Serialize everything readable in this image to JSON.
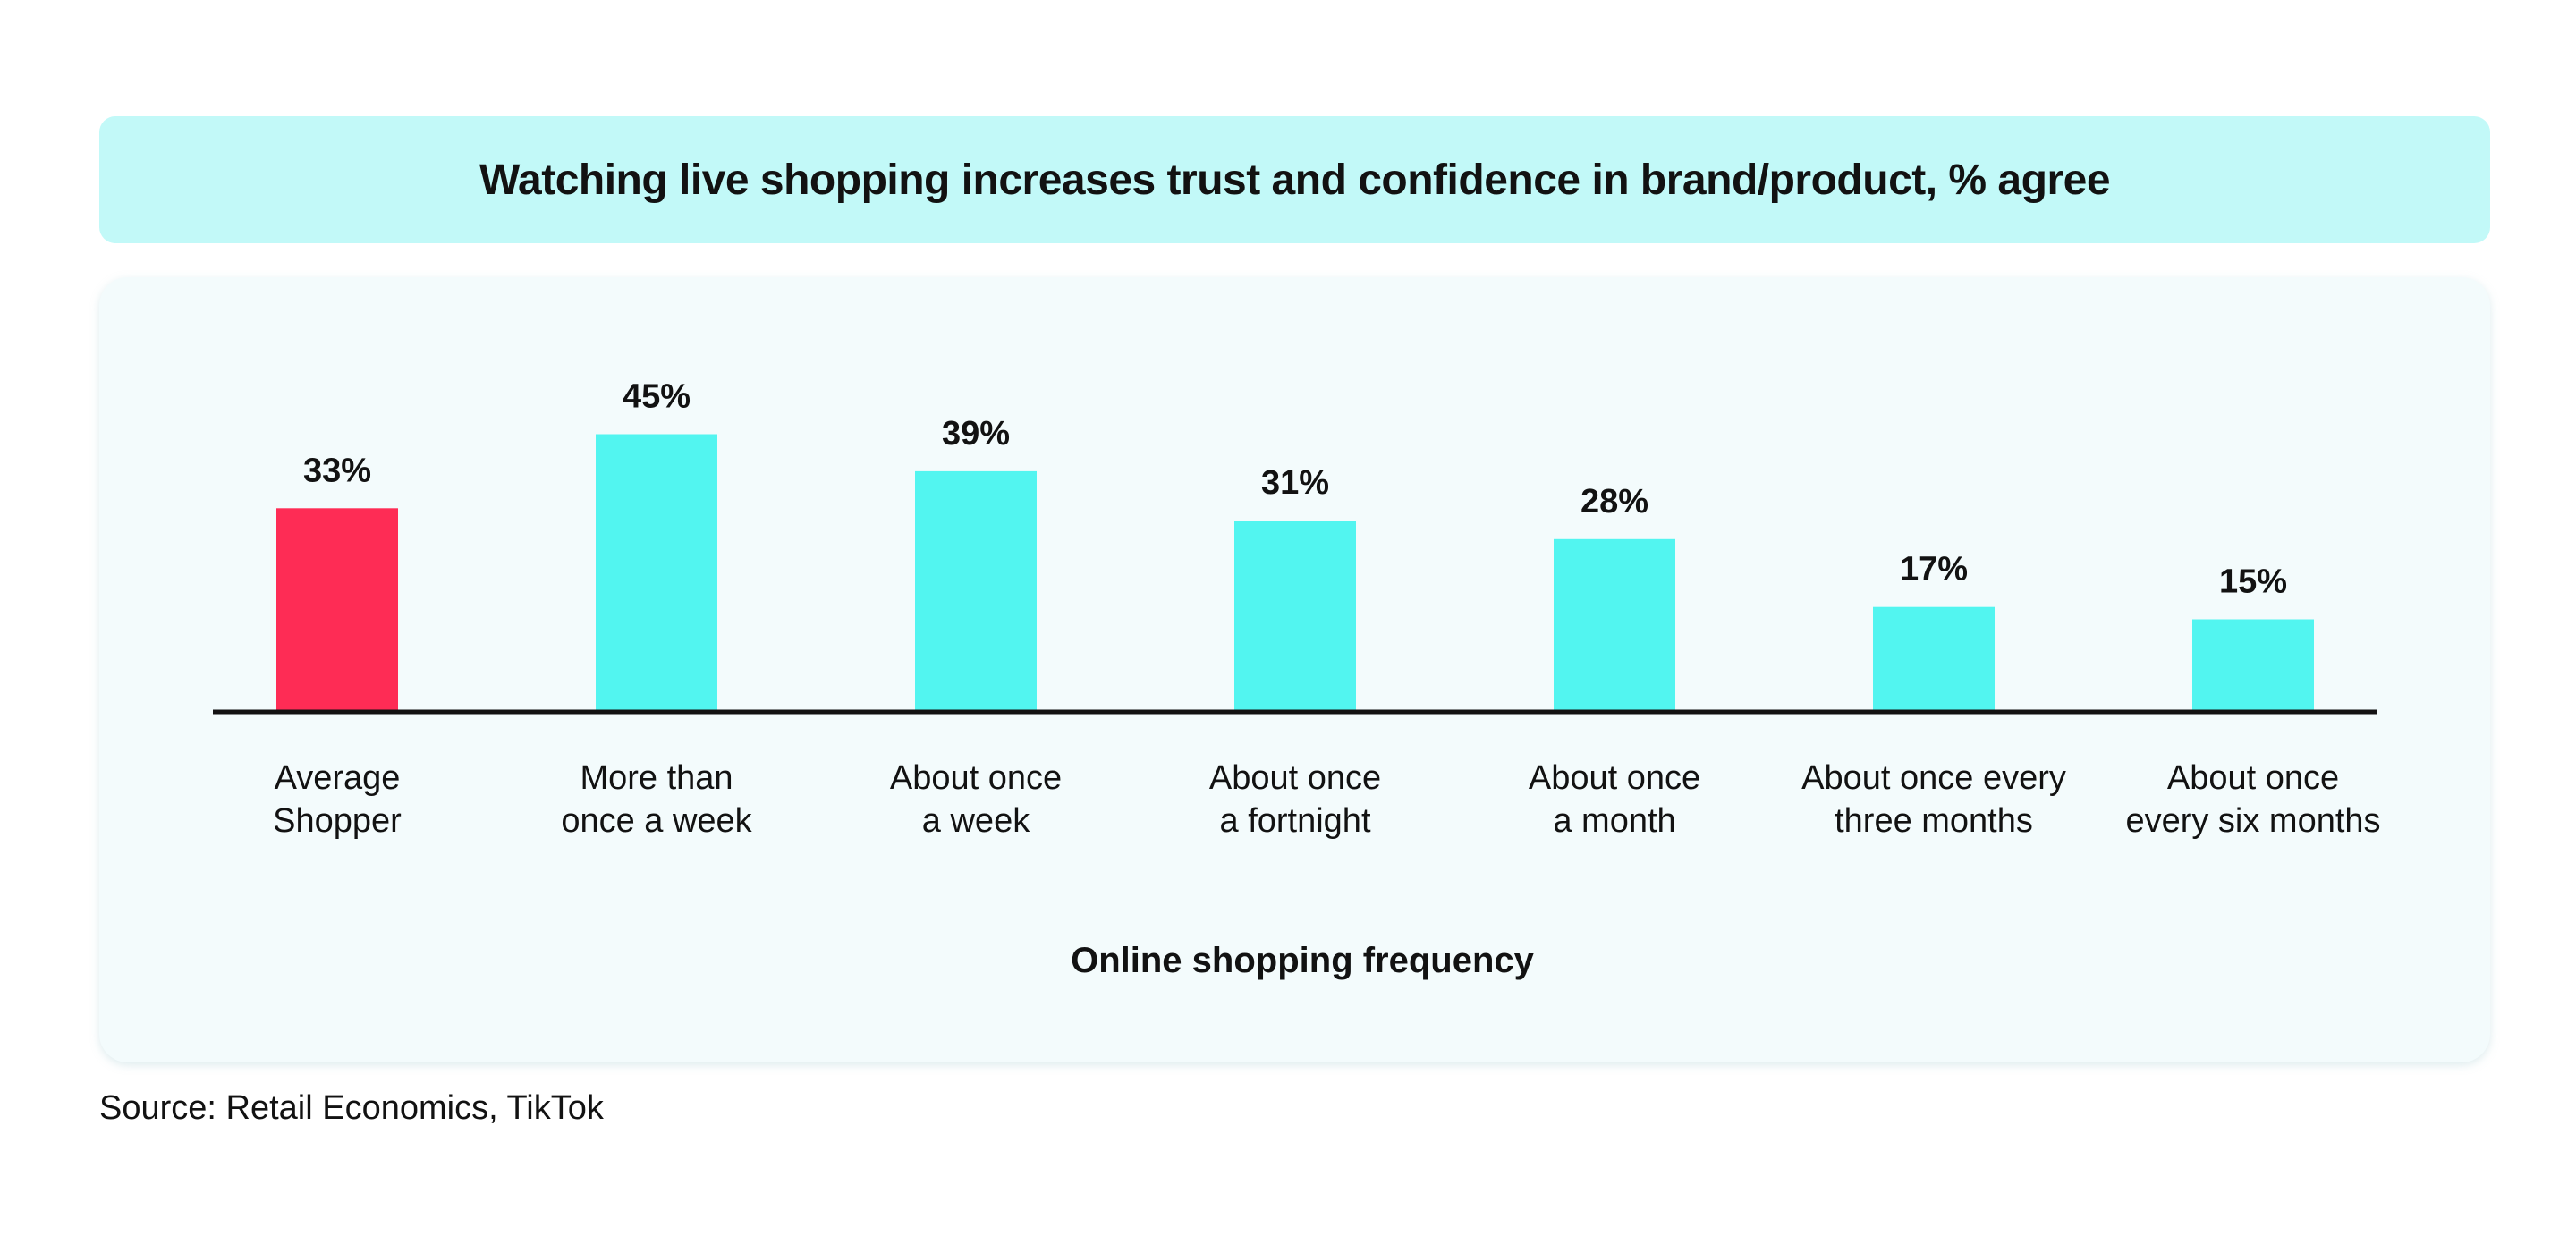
{
  "source_text": "Source: Retail Economics, TikTok",
  "colors": {
    "highlight": "#fe2c55",
    "bar": "#52f5f0",
    "axis": "#121212",
    "banner": "#c2f9f8",
    "panel": "#f3fbfc"
  },
  "chart_data": {
    "type": "bar",
    "title": "Watching live shopping increases trust and confidence in brand/product, % agree",
    "xlabel": "Online shopping frequency",
    "ylabel": "",
    "ylim": [
      0,
      50
    ],
    "grid": false,
    "legend": "none",
    "categories": [
      [
        "Average",
        "Shopper"
      ],
      [
        "More than",
        "once a week"
      ],
      [
        "About once",
        "a week"
      ],
      [
        "About once",
        "a fortnight"
      ],
      [
        "About once",
        "a month"
      ],
      [
        "About once every",
        "three months"
      ],
      [
        "About once",
        "every six months"
      ]
    ],
    "values": [
      33,
      45,
      39,
      31,
      28,
      17,
      15
    ],
    "value_labels": [
      "33%",
      "45%",
      "39%",
      "31%",
      "28%",
      "17%",
      "15%"
    ],
    "highlight_index": 0
  }
}
